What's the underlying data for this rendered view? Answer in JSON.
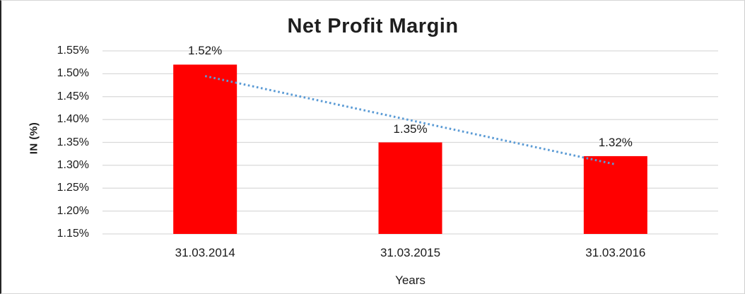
{
  "chart_data": {
    "type": "bar",
    "title": "Net Profit Margin",
    "xlabel": "Years",
    "ylabel": "IN (%)",
    "categories": [
      "31.03.2014",
      "31.03.2015",
      "31.03.2016"
    ],
    "values": [
      1.52,
      1.35,
      1.32
    ],
    "value_labels": [
      "1.52%",
      "1.35%",
      "1.32%"
    ],
    "ylim": [
      1.15,
      1.55
    ],
    "ytick_step": 0.05,
    "ytick_labels": [
      "1.55%",
      "1.50%",
      "1.45%",
      "1.40%",
      "1.35%",
      "1.30%",
      "1.25%",
      "1.20%",
      "1.15%"
    ],
    "grid": true,
    "legend": "none",
    "trendline": {
      "type": "linear",
      "style": "dotted",
      "start_value": 1.495,
      "end_value": 1.302
    },
    "colors": {
      "bar": "#FF0000",
      "trendline": "#5B9BD5",
      "gridline": "#D9D9D9",
      "text": "#1A1A1A"
    }
  }
}
